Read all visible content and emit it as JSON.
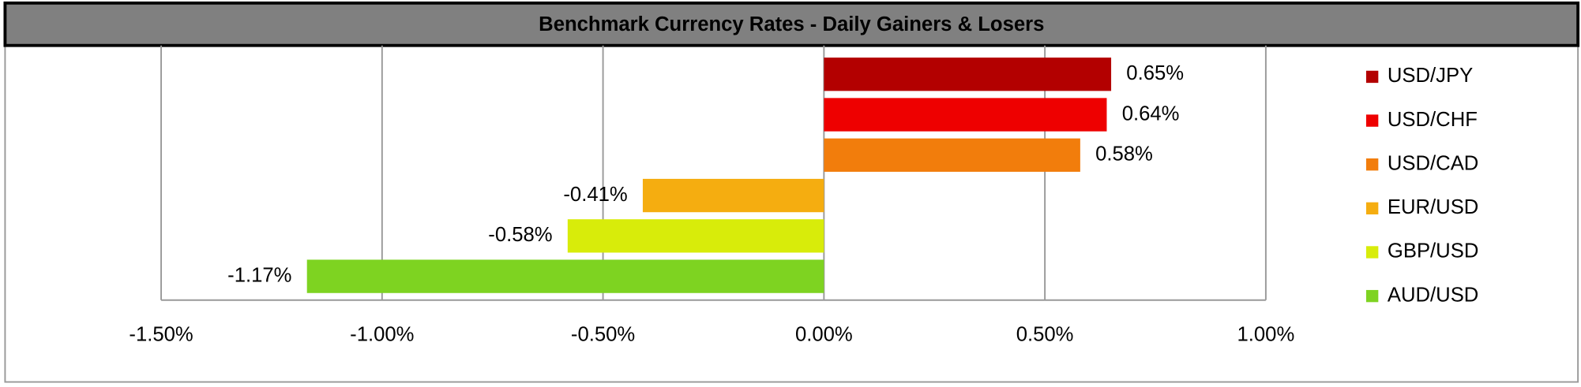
{
  "chart_data": {
    "type": "bar",
    "orientation": "horizontal",
    "title": "Benchmark Currency Rates - Daily Gainers & Losers",
    "categories": [
      "USD/JPY",
      "USD/CHF",
      "USD/CAD",
      "EUR/USD",
      "GBP/USD",
      "AUD/USD"
    ],
    "values": [
      0.65,
      0.64,
      0.58,
      -0.41,
      -0.58,
      -1.17
    ],
    "value_labels": [
      "0.65%",
      "0.64%",
      "0.58%",
      "-0.41%",
      "-0.58%",
      "-1.17%"
    ],
    "colors": [
      "#b30000",
      "#ee0000",
      "#f27d0c",
      "#f5ad10",
      "#d8ec0a",
      "#7ed321"
    ],
    "xlim": [
      -1.5,
      1.0
    ],
    "xticks": [
      {
        "value": -1.5,
        "label": "-1.50%"
      },
      {
        "value": -1.0,
        "label": "-1.00%"
      },
      {
        "value": -0.5,
        "label": "-0.50%"
      },
      {
        "value": 0,
        "label": "0.00%"
      },
      {
        "value": 0.5,
        "label": "0.50%"
      },
      {
        "value": 1.0,
        "label": "1.00%"
      }
    ],
    "grid": true,
    "legend": "right"
  }
}
